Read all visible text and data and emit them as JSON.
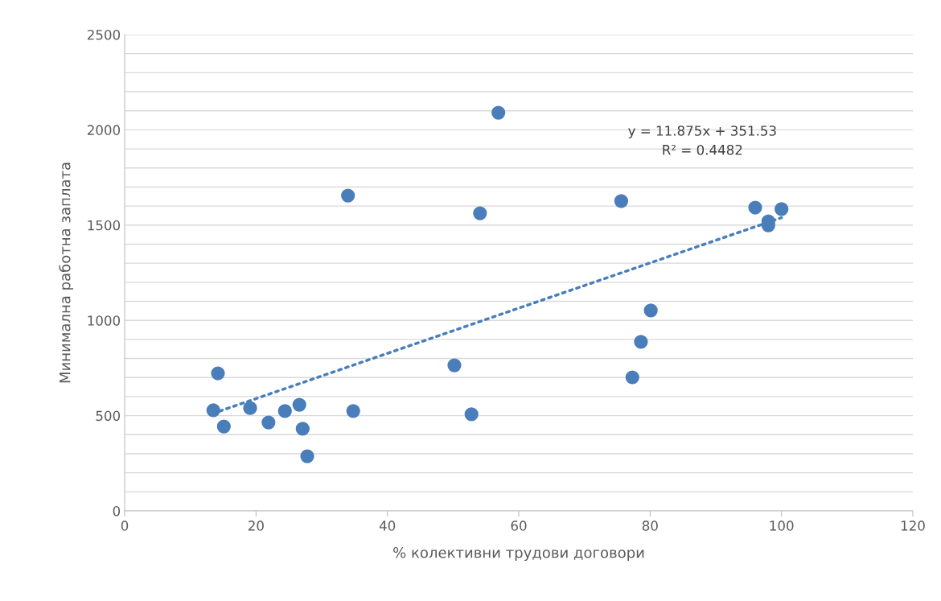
{
  "chart_data": {
    "type": "scatter",
    "xlabel": "% колективни трудови договори",
    "ylabel": "Минимална работна заплата",
    "series": [
      {
        "color": "#4a7ebb",
        "x": [
          13.5,
          14.2,
          15.1,
          19.1,
          21.9,
          24.4,
          26.6,
          27.1,
          27.8,
          34.0,
          34.8,
          50.2,
          52.8,
          54.1,
          56.9,
          75.6,
          77.3,
          78.6,
          80.1,
          96.0,
          98.0,
          98.0,
          100.0
        ],
        "values": [
          528,
          722,
          443,
          540,
          464,
          524,
          557,
          431,
          287,
          1655,
          524,
          764,
          507,
          1562,
          2090,
          1626,
          701,
          887,
          1052,
          1592,
          1520,
          1499,
          1584
        ]
      },
      {
        "type": "line",
        "color": "#4a7ebb",
        "line_style": "dotted",
        "marker": "none",
        "x": [
          13.4,
          100.0
        ],
        "values": [
          511,
          1539
        ]
      }
    ],
    "annotations": [
      "y = 11.875x + 351.53\nR² = 0.4482"
    ],
    "xlim": [
      0,
      120
    ],
    "xticks": [
      0,
      20,
      40,
      60,
      80,
      100,
      120
    ],
    "ylim": [
      0,
      2500
    ],
    "yticks": [
      0,
      {
        "value": 100,
        "label": null
      },
      {
        "value": 200,
        "label": null
      },
      {
        "value": 300,
        "label": null
      },
      {
        "value": 400,
        "label": null
      },
      500,
      {
        "value": 600,
        "label": null
      },
      {
        "value": 700,
        "label": null
      },
      {
        "value": 800,
        "label": null
      },
      {
        "value": 900,
        "label": null
      },
      1000,
      {
        "value": 1100,
        "label": null
      },
      {
        "value": 1200,
        "label": null
      },
      {
        "value": 1300,
        "label": null
      },
      {
        "value": 1400,
        "label": null
      },
      1500,
      {
        "value": 1600,
        "label": null
      },
      {
        "value": 1700,
        "label": null
      },
      {
        "value": 1800,
        "label": null
      },
      {
        "value": 1900,
        "label": null
      },
      2000,
      {
        "value": 2100,
        "label": null
      },
      {
        "value": 2200,
        "label": null
      },
      {
        "value": 2300,
        "label": null
      },
      {
        "value": 2400,
        "label": null
      },
      2500
    ],
    "grid": "y",
    "marker": "circle"
  }
}
